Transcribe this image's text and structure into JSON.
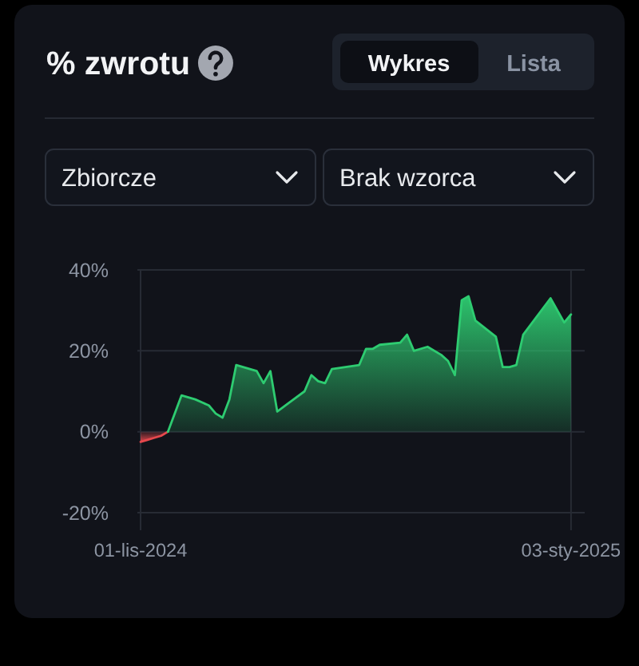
{
  "chart_data": {
    "type": "area",
    "title": "% zwrotu",
    "annotations": [
      "Wykres",
      "Lista",
      "Zbiorcze",
      "Brak wzorca"
    ],
    "xlim": [
      "2024-11-01",
      "2025-01-05"
    ],
    "xticks": [
      {
        "value": "2024-11-01",
        "label": "01-lis-2024"
      },
      {
        "value": "2025-01-03",
        "label": "03-sty-2025"
      }
    ],
    "ylim": [
      -20,
      40
    ],
    "yticks": [
      {
        "value": -20,
        "label": "-20%"
      },
      {
        "value": 0,
        "label": "0%"
      },
      {
        "value": 20,
        "label": "20%"
      },
      {
        "value": 40,
        "label": "40%"
      }
    ],
    "grid": true,
    "series": [
      {
        "color": "#e5484d",
        "x": [
          "2024-11-01",
          "2024-11-02",
          "2024-11-03",
          "2024-11-04",
          "2024-11-05"
        ],
        "values": [
          -2.5,
          -2,
          -1.5,
          -1,
          0
        ]
      },
      {
        "color": "#2ecc71",
        "x": [
          "2024-11-05",
          "2024-11-07",
          "2024-11-09",
          "2024-11-11",
          "2024-11-12",
          "2024-11-13",
          "2024-11-14",
          "2024-11-15",
          "2024-11-17",
          "2024-11-18",
          "2024-11-19",
          "2024-11-20",
          "2024-11-21",
          "2024-11-23",
          "2024-11-25",
          "2024-11-26",
          "2024-11-27",
          "2024-11-28",
          "2024-11-29",
          "2024-12-03",
          "2024-12-04",
          "2024-12-05",
          "2024-12-06",
          "2024-12-09",
          "2024-12-10",
          "2024-12-11",
          "2024-12-13",
          "2024-12-15",
          "2024-12-16",
          "2024-12-17",
          "2024-12-18",
          "2024-12-19",
          "2024-12-20",
          "2024-12-23",
          "2024-12-24",
          "2024-12-25",
          "2024-12-26",
          "2024-12-27",
          "2024-12-31",
          "2025-01-02",
          "2025-01-03"
        ],
        "values": [
          0,
          9,
          8,
          6.5,
          4.5,
          3.5,
          8,
          16.5,
          15.5,
          15,
          12,
          15,
          5,
          7.5,
          10,
          14,
          12.5,
          12,
          15.5,
          16.5,
          20.5,
          20.5,
          21.5,
          22,
          24,
          20,
          21,
          19,
          17.5,
          14,
          32.5,
          33.5,
          27.5,
          23.5,
          16,
          16,
          16.5,
          24,
          33,
          27,
          29
        ]
      }
    ]
  }
}
